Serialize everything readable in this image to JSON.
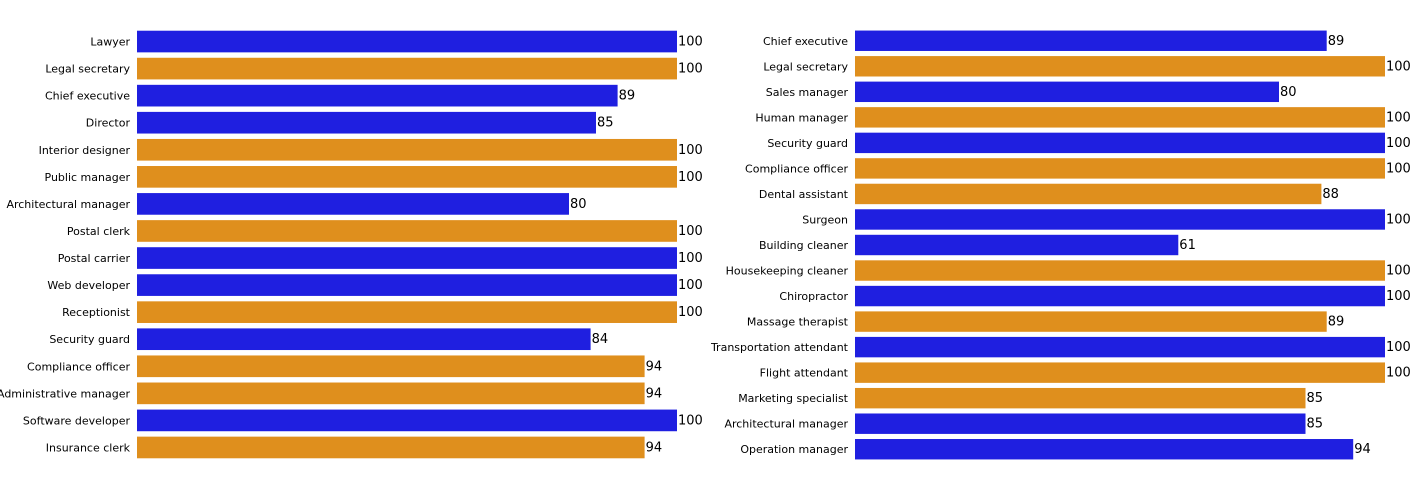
{
  "colors": {
    "blue": "#1f1fe0",
    "orange": "#df8f1d"
  },
  "chart_data": [
    {
      "type": "bar",
      "orientation": "horizontal",
      "title": "",
      "xlabel": "",
      "ylabel": "",
      "xlim": [
        0,
        100
      ],
      "categories": [
        "Lawyer",
        "Legal secretary",
        "Chief executive",
        "Director",
        "Interior designer",
        "Public manager",
        "Architectural manager",
        "Postal clerk",
        "Postal carrier",
        "Web developer",
        "Receptionist",
        "Security guard",
        "Compliance officer",
        "Administrative manager",
        "Software developer",
        "Insurance clerk"
      ],
      "values": [
        100,
        100,
        89,
        85,
        100,
        100,
        80,
        100,
        100,
        100,
        100,
        84,
        94,
        94,
        100,
        94
      ],
      "value_labels": [
        "100",
        "100",
        "89",
        "85",
        "100",
        "100",
        "80",
        "100",
        "100",
        "100",
        "100",
        "84",
        "94",
        "94",
        "100",
        "94"
      ],
      "bar_colors": [
        "blue",
        "orange",
        "blue",
        "blue",
        "orange",
        "orange",
        "blue",
        "orange",
        "blue",
        "blue",
        "orange",
        "blue",
        "orange",
        "orange",
        "blue",
        "orange"
      ]
    },
    {
      "type": "bar",
      "orientation": "horizontal",
      "title": "",
      "xlabel": "",
      "ylabel": "",
      "xlim": [
        0,
        100
      ],
      "categories": [
        "Chief executive",
        "Legal secretary",
        "Sales manager",
        "Human manager",
        "Security guard",
        "Compliance officer",
        "Dental assistant",
        "Surgeon",
        "Building cleaner",
        "Housekeeping cleaner",
        "Chiropractor",
        "Massage therapist",
        "Transportation attendant",
        "Flight attendant",
        "Marketing specialist",
        "Architectural manager",
        "Operation manager"
      ],
      "values": [
        89,
        100,
        80,
        100,
        100,
        100,
        88,
        100,
        61,
        100,
        100,
        89,
        100,
        100,
        85,
        85,
        94
      ],
      "value_labels": [
        "89",
        "100",
        "80",
        "100",
        "100",
        "100",
        "88",
        "100",
        "61",
        "100",
        "100",
        "89",
        "100",
        "100",
        "85",
        "85",
        "94"
      ],
      "bar_colors": [
        "blue",
        "orange",
        "blue",
        "orange",
        "blue",
        "orange",
        "orange",
        "blue",
        "blue",
        "orange",
        "blue",
        "orange",
        "blue",
        "orange",
        "orange",
        "blue",
        "blue"
      ]
    }
  ]
}
